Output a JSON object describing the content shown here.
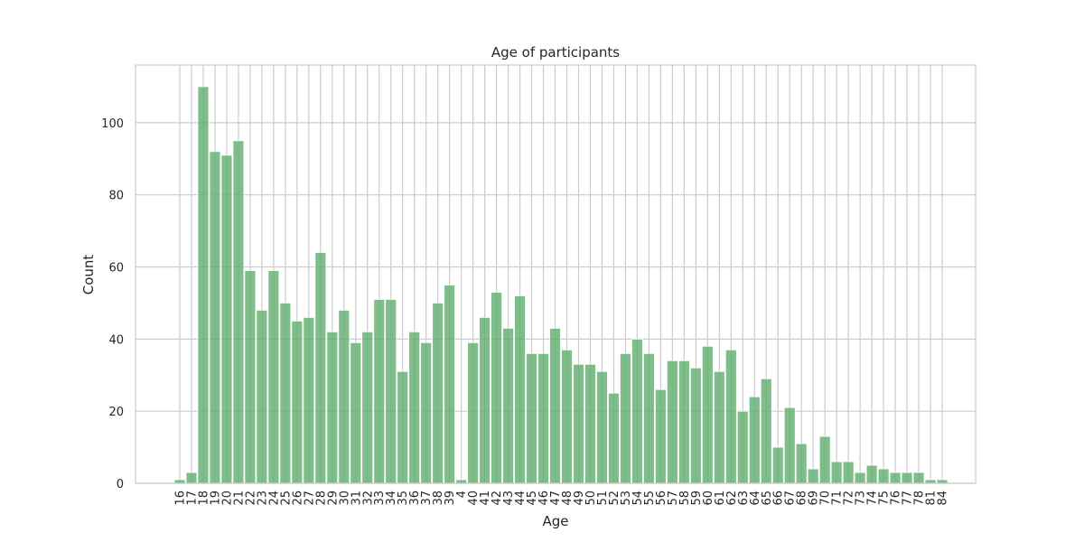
{
  "chart_data": {
    "type": "bar",
    "title": "Age of participants",
    "xlabel": "Age",
    "ylabel": "Count",
    "ylim": [
      0,
      116
    ],
    "yticks": [
      0,
      20,
      40,
      60,
      80,
      100
    ],
    "grid": true,
    "bar_color": "#5fae6e",
    "grid_color": "#cccccc",
    "categories": [
      "16",
      "17",
      "18",
      "19",
      "20",
      "21",
      "22",
      "23",
      "24",
      "25",
      "26",
      "27",
      "28",
      "29",
      "30",
      "31",
      "32",
      "33",
      "34",
      "35",
      "36",
      "37",
      "38",
      "39",
      "4",
      "40",
      "41",
      "42",
      "43",
      "44",
      "45",
      "46",
      "47",
      "48",
      "49",
      "50",
      "51",
      "52",
      "53",
      "54",
      "55",
      "56",
      "57",
      "58",
      "59",
      "60",
      "61",
      "62",
      "63",
      "64",
      "65",
      "66",
      "67",
      "68",
      "69",
      "70",
      "71",
      "72",
      "73",
      "74",
      "75",
      "76",
      "77",
      "78",
      "81",
      "84"
    ],
    "values": [
      1,
      3,
      110,
      92,
      91,
      95,
      59,
      48,
      59,
      50,
      45,
      46,
      64,
      42,
      48,
      39,
      42,
      51,
      51,
      31,
      42,
      39,
      50,
      55,
      1,
      39,
      46,
      53,
      43,
      52,
      36,
      36,
      43,
      37,
      33,
      33,
      31,
      25,
      36,
      40,
      36,
      26,
      34,
      34,
      32,
      38,
      31,
      37,
      20,
      24,
      29,
      10,
      21,
      11,
      4,
      13,
      6,
      6,
      3,
      5,
      4,
      3,
      3,
      3,
      1,
      1
    ]
  }
}
